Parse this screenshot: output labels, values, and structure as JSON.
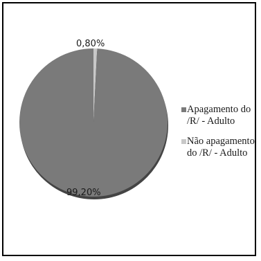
{
  "chart_data": {
    "type": "pie",
    "title": "",
    "slices": [
      {
        "label": "Apagamento do /R/ - Adulto",
        "value": 99.2,
        "display": "99,20%",
        "color": "#7a7a7a"
      },
      {
        "label": "Não apagamento do /R/ - Adulto",
        "value": 0.8,
        "display": "0,80%",
        "color": "#c8c8c8"
      }
    ],
    "legend_position": "right",
    "legend": [
      {
        "text": "Apagamento do /R/ - Adulto",
        "color": "#7a7a7a"
      },
      {
        "text": "Não apagamento do /R/ - Adulto",
        "color": "#c8c8c8"
      }
    ]
  }
}
